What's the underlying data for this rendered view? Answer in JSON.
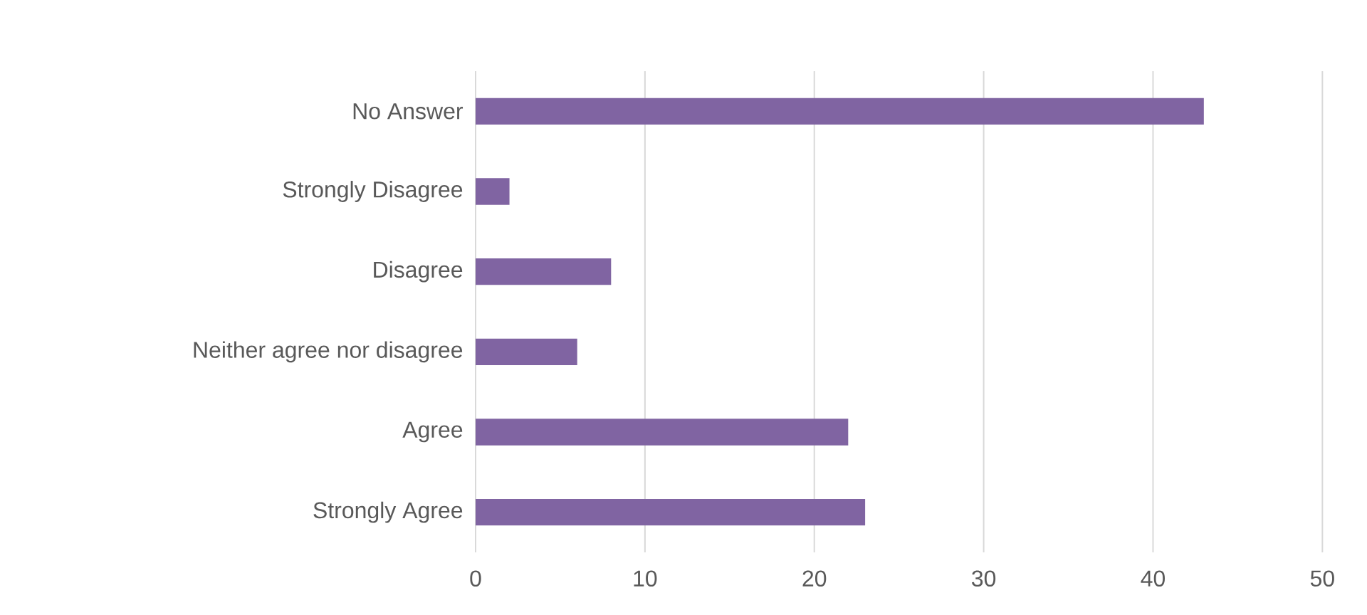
{
  "chart_data": {
    "type": "bar",
    "orientation": "horizontal",
    "categories": [
      "No Answer",
      "Strongly Disagree",
      "Disagree",
      "Neither agree nor disagree",
      "Agree",
      "Strongly Agree"
    ],
    "values": [
      43,
      2,
      8,
      6,
      22,
      23
    ],
    "color": "#8064a2",
    "xlim": [
      0,
      50
    ],
    "xticks": [
      0,
      10,
      20,
      30,
      40,
      50
    ],
    "grid": "x"
  }
}
